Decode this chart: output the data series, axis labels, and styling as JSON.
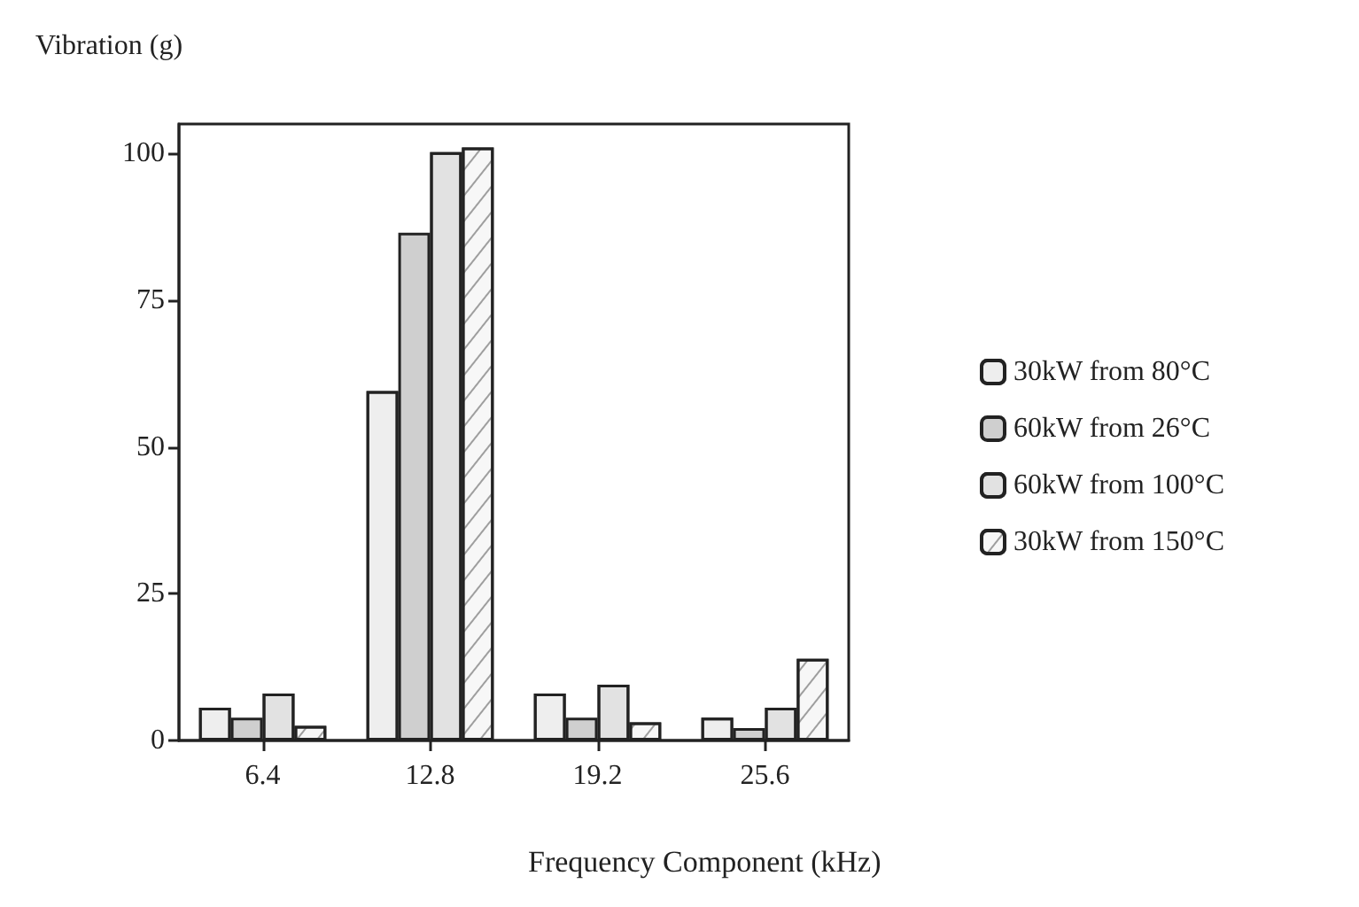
{
  "chart_data": {
    "type": "bar",
    "xlabel": "Frequency Component (kHz)",
    "ylabel": "Vibration (g)",
    "categories": [
      "6.4",
      "12.8",
      "19.2",
      "25.6"
    ],
    "series": [
      {
        "name": "30kW from 80°C",
        "color": "#eeeeee",
        "values": [
          5.6,
          59.5,
          8,
          3.9
        ]
      },
      {
        "name": "60kW from 26°C",
        "color": "#cfcfcf",
        "values": [
          3.9,
          86.5,
          3.9,
          2.1
        ]
      },
      {
        "name": "60kW from 100°C",
        "color": "#e2e2e2",
        "values": [
          8,
          100.2,
          9.5,
          5.6
        ]
      },
      {
        "name": "30kW from 150°C",
        "color": "#f7f7f7",
        "values": [
          2.5,
          101,
          3.1,
          13.9
        ]
      }
    ],
    "ylim": [
      0,
      105
    ],
    "yticks": [
      0,
      25,
      50,
      75,
      100
    ],
    "grid": false,
    "legend": "right"
  }
}
